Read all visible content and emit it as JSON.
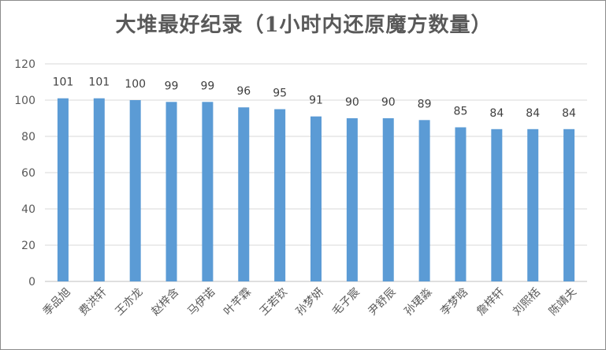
{
  "chart_data": {
    "type": "bar",
    "title": "大堆最好纪录（1小时内还原魔方数量）",
    "categories": [
      "季品旭",
      "费洪轩",
      "王亦龙",
      "赵梓含",
      "马伊诺",
      "叶芊霖",
      "王若钦",
      "孙梦妍",
      "毛子宸",
      "尹舒辰",
      "孙珺淼",
      "李梦晗",
      "詹梓轩",
      "刘熙栝",
      "陈靖夫"
    ],
    "values": [
      101,
      101,
      100,
      99,
      99,
      96,
      95,
      91,
      90,
      90,
      89,
      85,
      84,
      84,
      84
    ],
    "ylim": [
      0,
      120
    ],
    "yticks": [
      0,
      20,
      40,
      60,
      80,
      100,
      120
    ],
    "grid": true,
    "legend": "none",
    "bar_color": "#5b9bd5",
    "grid_color": "#d9d9d9"
  }
}
